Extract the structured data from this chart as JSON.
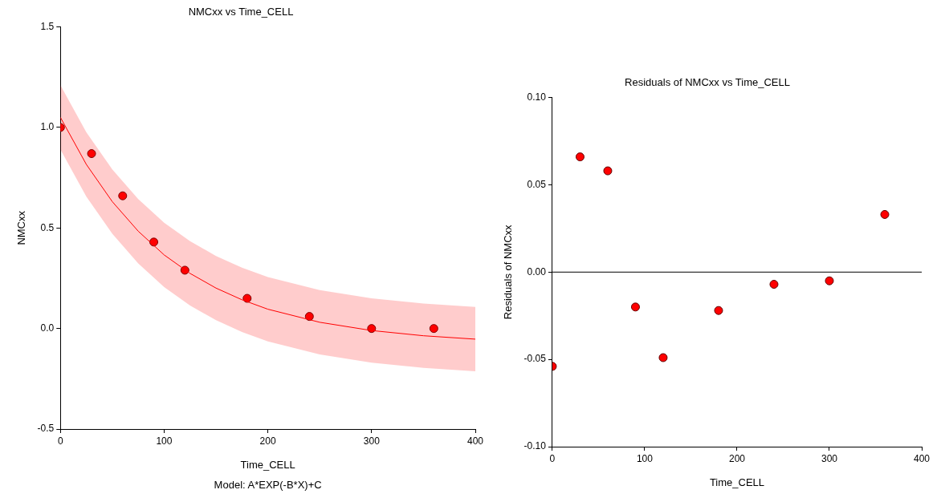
{
  "chart_data": [
    {
      "type": "scatter",
      "title": "NMCxx vs Time_CELL",
      "xlabel": "Time_CELL",
      "ylabel": "NMCxx",
      "xlim": [
        0,
        400
      ],
      "xticks": [
        0,
        100,
        200,
        300,
        400
      ],
      "ylim": [
        -0.5,
        1.5
      ],
      "yticks": [
        -0.5,
        {
          "value": 0,
          "label": "0.0"
        },
        0.5,
        {
          "value": 1,
          "label": "1.0"
        },
        1.5
      ],
      "grid": false,
      "annotations": [
        "Model: A*EXP(-B*X)+C"
      ],
      "series": [
        {
          "type": "line",
          "color": "#ff0000",
          "marker": "none",
          "line_style": "solid",
          "x": [
            0,
            25,
            50,
            75,
            100,
            125,
            150,
            175,
            200,
            250,
            300,
            350,
            400
          ],
          "values": [
            1.05,
            0.816,
            0.631,
            0.484,
            0.366,
            0.274,
            0.201,
            0.143,
            0.096,
            0.031,
            -0.01,
            -0.036,
            -0.053
          ],
          "lower": [
            0.89,
            0.656,
            0.471,
            0.324,
            0.206,
            0.114,
            0.041,
            -0.017,
            -0.064,
            -0.129,
            -0.17,
            -0.196,
            -0.213
          ],
          "upper": [
            1.21,
            0.976,
            0.791,
            0.644,
            0.526,
            0.434,
            0.361,
            0.303,
            0.256,
            0.191,
            0.15,
            0.124,
            0.107
          ]
        },
        {
          "type": "scatter",
          "color": "#ff0000",
          "marker": "circle",
          "x": [
            0,
            30,
            60,
            90,
            120,
            180,
            240,
            300,
            360
          ],
          "values": [
            1.0,
            0.87,
            0.66,
            0.43,
            0.29,
            0.15,
            0.06,
            0.0,
            0.0
          ]
        }
      ]
    },
    {
      "type": "scatter",
      "title": "Residuals of NMCxx vs Time_CELL",
      "xlabel": "Time_CELL",
      "ylabel": "Residuals of NMCxx",
      "xlim": [
        0,
        400
      ],
      "xticks": [
        0,
        100,
        200,
        300,
        400
      ],
      "ylim": [
        -0.1,
        0.1
      ],
      "yticks": [
        {
          "value": -0.1,
          "label": "-0.10"
        },
        -0.05,
        {
          "value": 0,
          "label": "0.00"
        },
        0.05,
        {
          "value": 0.1,
          "label": "0.10"
        }
      ],
      "grid": false,
      "ref_lines": [
        {
          "axis": "y",
          "value": 0,
          "color": "#000000"
        }
      ],
      "series": [
        {
          "type": "scatter",
          "color": "#ff0000",
          "marker": "circle",
          "x": [
            0,
            30,
            60,
            90,
            120,
            180,
            240,
            300,
            360
          ],
          "values": [
            -0.054,
            0.066,
            0.058,
            -0.02,
            -0.049,
            -0.022,
            -0.007,
            -0.005,
            0.033
          ]
        }
      ]
    }
  ]
}
